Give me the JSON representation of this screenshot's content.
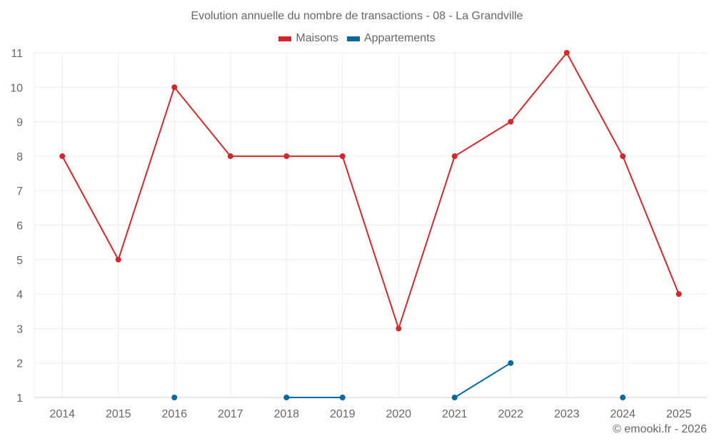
{
  "chart_data": {
    "type": "line",
    "title": "Evolution annuelle du nombre de transactions - 08 - La Grandville",
    "xlabel": "",
    "ylabel": "",
    "categories": [
      "2014",
      "2015",
      "2016",
      "2017",
      "2018",
      "2019",
      "2020",
      "2021",
      "2022",
      "2023",
      "2024",
      "2025"
    ],
    "series": [
      {
        "name": "Maisons",
        "color": "#d62728",
        "values": [
          8,
          5,
          10,
          8,
          8,
          8,
          3,
          8,
          9,
          11,
          8,
          4
        ]
      },
      {
        "name": "Appartements",
        "color": "#0868a0",
        "values": [
          null,
          null,
          1,
          null,
          1,
          1,
          null,
          1,
          2,
          null,
          1,
          null
        ]
      }
    ],
    "ylim": [
      1,
      11
    ],
    "yticks": [
      1,
      2,
      3,
      4,
      5,
      6,
      7,
      8,
      9,
      10,
      11
    ],
    "grid": true,
    "legend_position": "top"
  },
  "credit": "© emooki.fr - 2026"
}
